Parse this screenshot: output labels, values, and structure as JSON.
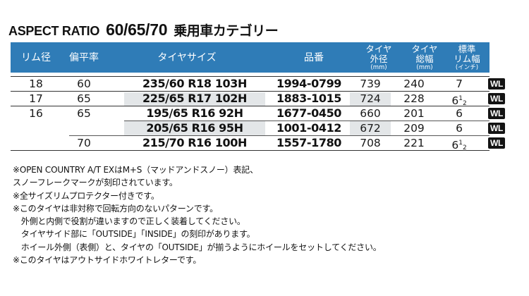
{
  "title": {
    "part1": "ASPECT RATIO",
    "part2": "60/65/70",
    "part3": "乗用車カテゴリー"
  },
  "table": {
    "headers": {
      "rim": "リム径",
      "aspect": "偏平率",
      "size": "タイヤサイズ",
      "part": "品番",
      "outer_1": "タイヤ",
      "outer_2": "外径",
      "outer_unit": "(mm)",
      "width_1": "タイヤ",
      "width_2": "総幅",
      "width_unit": "(mm)",
      "std_1": "標準",
      "std_2": "リム幅",
      "std_unit": "(インチ)"
    },
    "rows": [
      {
        "rim": "18",
        "aspect": "60",
        "size": "235/60 R18 103H",
        "part": "1994-0799",
        "outer": "739",
        "width": "240",
        "rim_width": "7",
        "badge": "WL"
      },
      {
        "rim": "17",
        "aspect": "65",
        "size": "225/65 R17 102H",
        "part": "1883-1015",
        "outer": "724",
        "width": "228",
        "rim_width_whole": "6",
        "rim_width_num": "1",
        "rim_width_den": "2",
        "badge": "WL"
      },
      {
        "rim": "16",
        "aspect": "65",
        "size": "195/65 R16 92H",
        "part": "1677-0450",
        "outer": "660",
        "width": "201",
        "rim_width": "6",
        "badge": "WL"
      },
      {
        "rim": "",
        "aspect": "",
        "size": "205/65 R16 95H",
        "part": "1001-0412",
        "outer": "672",
        "width": "209",
        "rim_width": "6",
        "badge": "WL"
      },
      {
        "rim": "",
        "aspect": "70",
        "size": "215/70 R16 100H",
        "part": "1557-1780",
        "outer": "708",
        "width": "221",
        "rim_width_whole": "6",
        "rim_width_num": "1",
        "rim_width_den": "2",
        "badge": "WL"
      }
    ]
  },
  "notes": [
    "※OPEN COUNTRY A/T EXはM+S（マッドアンドスノー）表記、",
    "スノーフレークマークが刻印されています。",
    "※全サイズリムプロテクター付きです。",
    "※このタイヤは非対称で回転方向のないパターンです。",
    "　外側と内側で役割が違いますので正しく装着してください。",
    "　タイヤサイド部に「OUTSIDE」「INSIDE」の刻印があります。",
    "　ホイール外側（表側）と、タイヤの「OUTSIDE」が揃うようにホイールをセットしてください。",
    "※このタイヤはアウトサイドホワイトレターです。"
  ]
}
